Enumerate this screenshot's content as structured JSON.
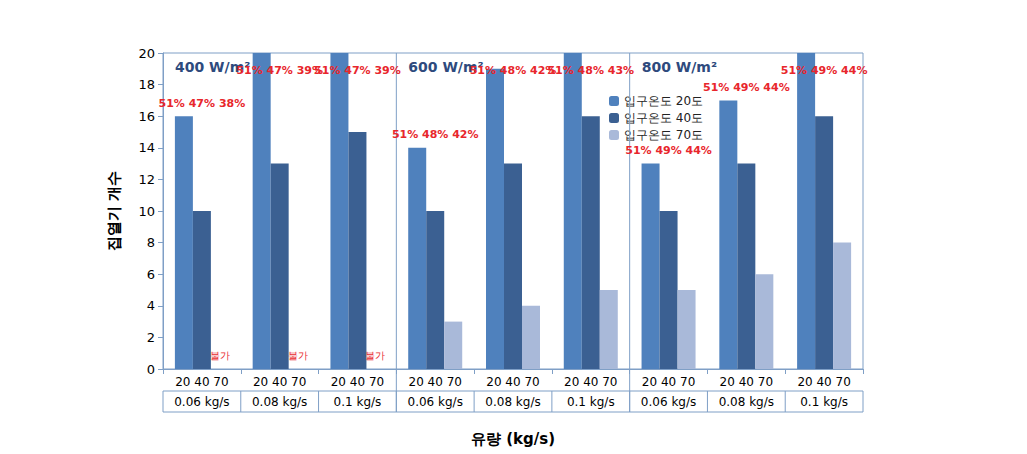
{
  "chart_data": {
    "type": "bar",
    "y_label": "집열기 개수",
    "x_label": "유량 (kg/s)",
    "panels": [
      "400 W/m²",
      "600 W/m²",
      "800 W/m²"
    ],
    "categories": [
      "0.06 kg/s",
      "0.08 kg/s",
      "0.1 kg/s",
      "0.06 kg/s",
      "0.08 kg/s",
      "0.1 kg/s",
      "0.06 kg/s",
      "0.08 kg/s",
      "0.1 kg/s"
    ],
    "sub_labels": [
      "20",
      "40",
      "70"
    ],
    "series": [
      {
        "name": "입구온도 20도",
        "color": "#4f81bd",
        "values": [
          16,
          20,
          20,
          14,
          19,
          20,
          13,
          17,
          20
        ]
      },
      {
        "name": "입구온도 40도",
        "color": "#3b6092",
        "values": [
          10,
          13,
          15,
          10,
          13,
          16,
          10,
          13,
          16
        ]
      },
      {
        "name": "입구온도 70도",
        "color": "#a9b9d9",
        "values": [
          null,
          null,
          null,
          3,
          4,
          5,
          5,
          6,
          8
        ]
      }
    ],
    "annotations": [
      "51% 47% 38%",
      "51% 47% 39%",
      "51% 47% 39%",
      "51% 48% 42%",
      "51% 48% 42%",
      "51% 48% 43%",
      "51% 49% 44%",
      "51% 49% 44%",
      "51% 49% 44%"
    ],
    "null_label": "불가",
    "ylim": [
      0,
      20
    ],
    "yticks": [
      0,
      2,
      4,
      6,
      8,
      10,
      12,
      14,
      16,
      18,
      20
    ],
    "grid": false,
    "legend": "upper right"
  }
}
